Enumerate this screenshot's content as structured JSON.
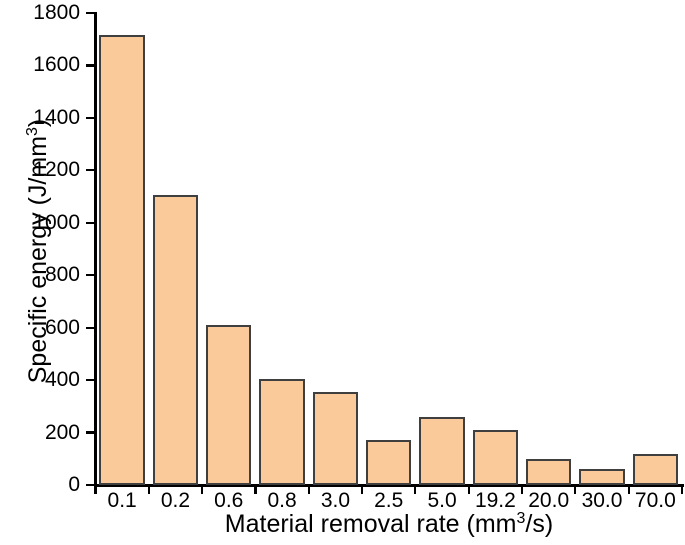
{
  "chart_data": {
    "type": "bar",
    "title": "",
    "categories": [
      "0.1",
      "0.2",
      "0.6",
      "0.8",
      "3.0",
      "2.5",
      "5.0",
      "19.2",
      "20.0",
      "30.0",
      "70.0"
    ],
    "values": [
      1715,
      1105,
      610,
      405,
      355,
      170,
      260,
      210,
      100,
      60,
      120
    ],
    "xlabel": "Material removal rate (mm³/s)",
    "ylabel": "Specific energy (J/mm³)",
    "xlabel_parts": {
      "pre": "Material removal rate (mm",
      "sup": "3",
      "post": "/s)"
    },
    "ylabel_parts": {
      "pre": "Specific energy (J/mm",
      "sup": "3",
      "post": ")"
    },
    "ylim": [
      0,
      1800
    ],
    "yticks": [
      0,
      200,
      400,
      600,
      800,
      1000,
      1200,
      1400,
      1600,
      1800
    ],
    "grid": false,
    "legend_position": "none",
    "colors": {
      "bar_fill": "#fbca9a",
      "bar_border": "#3f3f3f",
      "axis": "#000000",
      "text": "#000000",
      "background": "#ffffff"
    }
  }
}
